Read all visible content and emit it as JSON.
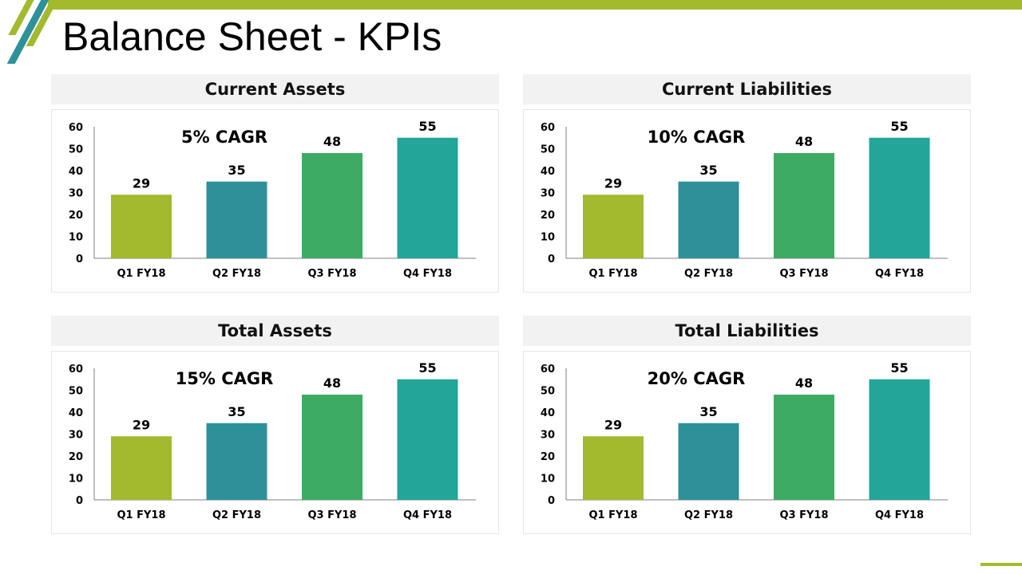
{
  "slide": {
    "title": "Balance Sheet - KPIs",
    "colors": {
      "accent_green": "#a3b92e",
      "accent_teal": "#2e9199",
      "bar_colors": [
        "#a3b92e",
        "#2e9199",
        "#3eab64",
        "#23a699"
      ],
      "header_bg": "#f2f2f2"
    }
  },
  "chart_data": [
    {
      "type": "bar",
      "title": "Current Assets",
      "annotation": "5% CAGR",
      "categories": [
        "Q1 FY18",
        "Q2 FY18",
        "Q3 FY18",
        "Q4 FY18"
      ],
      "values": [
        29,
        35,
        48,
        55
      ],
      "ylim": [
        0,
        60
      ],
      "yticks": [
        0,
        10,
        20,
        30,
        40,
        50,
        60
      ],
      "xlabel": "",
      "ylabel": "",
      "grid": false
    },
    {
      "type": "bar",
      "title": "Current Liabilities",
      "annotation": "10% CAGR",
      "categories": [
        "Q1 FY18",
        "Q2 FY18",
        "Q3 FY18",
        "Q4 FY18"
      ],
      "values": [
        29,
        35,
        48,
        55
      ],
      "ylim": [
        0,
        60
      ],
      "yticks": [
        0,
        10,
        20,
        30,
        40,
        50,
        60
      ],
      "xlabel": "",
      "ylabel": "",
      "grid": false
    },
    {
      "type": "bar",
      "title": "Total Assets",
      "annotation": "15% CAGR",
      "categories": [
        "Q1 FY18",
        "Q2 FY18",
        "Q3 FY18",
        "Q4 FY18"
      ],
      "values": [
        29,
        35,
        48,
        55
      ],
      "ylim": [
        0,
        60
      ],
      "yticks": [
        0,
        10,
        20,
        30,
        40,
        50,
        60
      ],
      "xlabel": "",
      "ylabel": "",
      "grid": false
    },
    {
      "type": "bar",
      "title": "Total Liabilities",
      "annotation": "20% CAGR",
      "categories": [
        "Q1 FY18",
        "Q2 FY18",
        "Q3 FY18",
        "Q4 FY18"
      ],
      "values": [
        29,
        35,
        48,
        55
      ],
      "ylim": [
        0,
        60
      ],
      "yticks": [
        0,
        10,
        20,
        30,
        40,
        50,
        60
      ],
      "xlabel": "",
      "ylabel": "",
      "grid": false
    }
  ]
}
